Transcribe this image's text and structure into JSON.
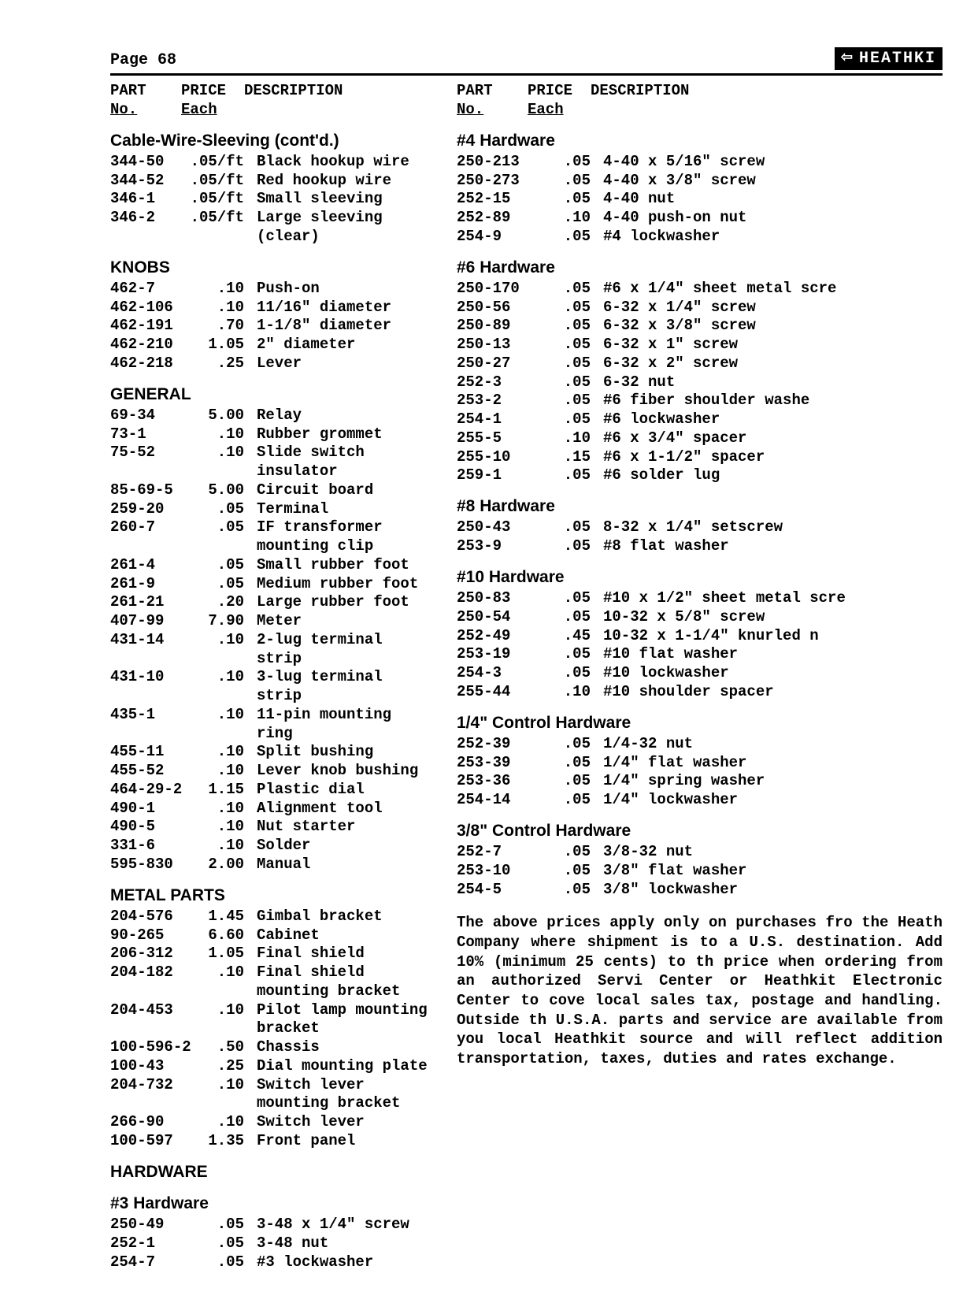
{
  "page_label": "Page 68",
  "brand": "HEATHKI",
  "headers": {
    "part_line1": "PART",
    "part_line2": "No.",
    "price_line1": "PRICE",
    "price_line2": "Each",
    "desc": "DESCRIPTION"
  },
  "left_sections": [
    {
      "title": "Cable-Wire-Sleeving (cont'd.)",
      "rows": [
        {
          "part": "344-50",
          "price": ".05/ft",
          "desc": "Black hookup wire"
        },
        {
          "part": "344-52",
          "price": ".05/ft",
          "desc": "Red hookup wire"
        },
        {
          "part": "346-1",
          "price": ".05/ft",
          "desc": "Small sleeving"
        },
        {
          "part": "346-2",
          "price": ".05/ft",
          "desc": "Large sleeving (clear)"
        }
      ]
    },
    {
      "title": "KNOBS",
      "rows": [
        {
          "part": "462-7",
          "price": ".10",
          "desc": "Push-on"
        },
        {
          "part": "462-106",
          "price": ".10",
          "desc": "11/16\" diameter"
        },
        {
          "part": "462-191",
          "price": ".70",
          "desc": "1-1/8\" diameter"
        },
        {
          "part": "462-210",
          "price": "1.05",
          "desc": "2\" diameter"
        },
        {
          "part": "462-218",
          "price": ".25",
          "desc": "Lever"
        }
      ]
    },
    {
      "title": "GENERAL",
      "rows": [
        {
          "part": "69-34",
          "price": "5.00",
          "desc": "Relay"
        },
        {
          "part": "73-1",
          "price": ".10",
          "desc": "Rubber grommet"
        },
        {
          "part": "75-52",
          "price": ".10",
          "desc": "Slide switch insulator"
        },
        {
          "part": "85-69-5",
          "price": "5.00",
          "desc": "Circuit board"
        },
        {
          "part": "259-20",
          "price": ".05",
          "desc": "Terminal"
        },
        {
          "part": "260-7",
          "price": ".05",
          "desc": "IF transformer mounting clip"
        },
        {
          "part": "261-4",
          "price": ".05",
          "desc": "Small rubber foot"
        },
        {
          "part": "261-9",
          "price": ".05",
          "desc": "Medium rubber foot"
        },
        {
          "part": "261-21",
          "price": ".20",
          "desc": "Large rubber foot"
        },
        {
          "part": "407-99",
          "price": "7.90",
          "desc": "Meter"
        },
        {
          "part": "431-14",
          "price": ".10",
          "desc": "2-lug terminal strip"
        },
        {
          "part": "431-10",
          "price": ".10",
          "desc": "3-lug terminal strip"
        },
        {
          "part": "435-1",
          "price": ".10",
          "desc": "11-pin mounting ring"
        },
        {
          "part": "455-11",
          "price": ".10",
          "desc": "Split bushing"
        },
        {
          "part": "455-52",
          "price": ".10",
          "desc": "Lever knob bushing"
        },
        {
          "part": "464-29-2",
          "price": "1.15",
          "desc": "Plastic dial"
        },
        {
          "part": "490-1",
          "price": ".10",
          "desc": "Alignment tool"
        },
        {
          "part": "490-5",
          "price": ".10",
          "desc": "Nut starter"
        },
        {
          "part": "331-6",
          "price": ".10",
          "desc": "Solder"
        },
        {
          "part": "595-830",
          "price": "2.00",
          "desc": "Manual"
        }
      ]
    },
    {
      "title": "METAL PARTS",
      "rows": [
        {
          "part": "204-576",
          "price": "1.45",
          "desc": "Gimbal bracket"
        },
        {
          "part": "90-265",
          "price": "6.60",
          "desc": "Cabinet"
        },
        {
          "part": "206-312",
          "price": "1.05",
          "desc": "Final shield"
        },
        {
          "part": "204-182",
          "price": ".10",
          "desc": "Final shield mounting bracket"
        },
        {
          "part": "204-453",
          "price": ".10",
          "desc": "Pilot lamp mounting bracket"
        },
        {
          "part": "100-596-2",
          "price": ".50",
          "desc": "Chassis"
        },
        {
          "part": "100-43",
          "price": ".25",
          "desc": "Dial mounting plate"
        },
        {
          "part": "204-732",
          "price": ".10",
          "desc": "Switch lever mounting bracket"
        },
        {
          "part": "266-90",
          "price": ".10",
          "desc": "Switch lever"
        },
        {
          "part": "100-597",
          "price": "1.35",
          "desc": "Front panel"
        }
      ]
    },
    {
      "title": "HARDWARE",
      "rows": []
    },
    {
      "title": "#3 Hardware",
      "rows": [
        {
          "part": "250-49",
          "price": ".05",
          "desc": "3-48 x 1/4\" screw"
        },
        {
          "part": "252-1",
          "price": ".05",
          "desc": "3-48 nut"
        },
        {
          "part": "254-7",
          "price": ".05",
          "desc": "#3 lockwasher"
        }
      ]
    }
  ],
  "right_sections": [
    {
      "title": "#4 Hardware",
      "rows": [
        {
          "part": "250-213",
          "price": ".05",
          "desc": "4-40 x 5/16\" screw"
        },
        {
          "part": "250-273",
          "price": ".05",
          "desc": "4-40 x 3/8\" screw"
        },
        {
          "part": "252-15",
          "price": ".05",
          "desc": "4-40 nut"
        },
        {
          "part": "252-89",
          "price": ".10",
          "desc": "4-40 push-on nut"
        },
        {
          "part": "254-9",
          "price": ".05",
          "desc": "#4 lockwasher"
        }
      ]
    },
    {
      "title": "#6 Hardware",
      "rows": [
        {
          "part": "250-170",
          "price": ".05",
          "desc": "#6 x 1/4\" sheet metal scre"
        },
        {
          "part": "250-56",
          "price": ".05",
          "desc": "6-32 x 1/4\" screw"
        },
        {
          "part": "250-89",
          "price": ".05",
          "desc": "6-32 x 3/8\" screw"
        },
        {
          "part": "250-13",
          "price": ".05",
          "desc": "6-32 x 1\" screw"
        },
        {
          "part": "250-27",
          "price": ".05",
          "desc": "6-32 x 2\" screw"
        },
        {
          "part": "252-3",
          "price": ".05",
          "desc": "6-32 nut"
        },
        {
          "part": "253-2",
          "price": ".05",
          "desc": "#6 fiber shoulder washe"
        },
        {
          "part": "254-1",
          "price": ".05",
          "desc": "#6 lockwasher"
        },
        {
          "part": "255-5",
          "price": ".10",
          "desc": "#6 x 3/4\" spacer"
        },
        {
          "part": "255-10",
          "price": ".15",
          "desc": "#6 x 1-1/2\" spacer"
        },
        {
          "part": "259-1",
          "price": ".05",
          "desc": "#6 solder lug"
        }
      ]
    },
    {
      "title": "#8 Hardware",
      "rows": [
        {
          "part": "250-43",
          "price": ".05",
          "desc": "8-32 x 1/4\" setscrew"
        },
        {
          "part": "253-9",
          "price": ".05",
          "desc": "#8 flat washer"
        }
      ]
    },
    {
      "title": "#10 Hardware",
      "rows": [
        {
          "part": "250-83",
          "price": ".05",
          "desc": "#10 x 1/2\" sheet metal scre"
        },
        {
          "part": "250-54",
          "price": ".05",
          "desc": "10-32 x 5/8\" screw"
        },
        {
          "part": "252-49",
          "price": ".45",
          "desc": "10-32 x 1-1/4\" knurled n"
        },
        {
          "part": "253-19",
          "price": ".05",
          "desc": "#10 flat washer"
        },
        {
          "part": "254-3",
          "price": ".05",
          "desc": "#10 lockwasher"
        },
        {
          "part": "255-44",
          "price": ".10",
          "desc": "#10 shoulder spacer"
        }
      ]
    },
    {
      "title": "1/4\" Control Hardware",
      "rows": [
        {
          "part": "252-39",
          "price": ".05",
          "desc": "1/4-32 nut"
        },
        {
          "part": "253-39",
          "price": ".05",
          "desc": "1/4\" flat washer"
        },
        {
          "part": "253-36",
          "price": ".05",
          "desc": "1/4\" spring washer"
        },
        {
          "part": "254-14",
          "price": ".05",
          "desc": "1/4\" lockwasher"
        }
      ]
    },
    {
      "title": "3/8\" Control Hardware",
      "rows": [
        {
          "part": "252-7",
          "price": ".05",
          "desc": "3/8-32 nut"
        },
        {
          "part": "253-10",
          "price": ".05",
          "desc": "3/8\" flat washer"
        },
        {
          "part": "254-5",
          "price": ".05",
          "desc": "3/8\" lockwasher"
        }
      ]
    }
  ],
  "note": "The above prices apply only on purchases fro the Heath Company where shipment is to a U.S. destination. Add 10% (minimum 25 cents) to th price when ordering from an authorized Servi Center or Heathkit Electronic Center to cove local sales tax, postage and handling. Outside th U.S.A. parts and service are available from you local Heathkit source and will reflect addition transportation, taxes, duties and rates exchange."
}
